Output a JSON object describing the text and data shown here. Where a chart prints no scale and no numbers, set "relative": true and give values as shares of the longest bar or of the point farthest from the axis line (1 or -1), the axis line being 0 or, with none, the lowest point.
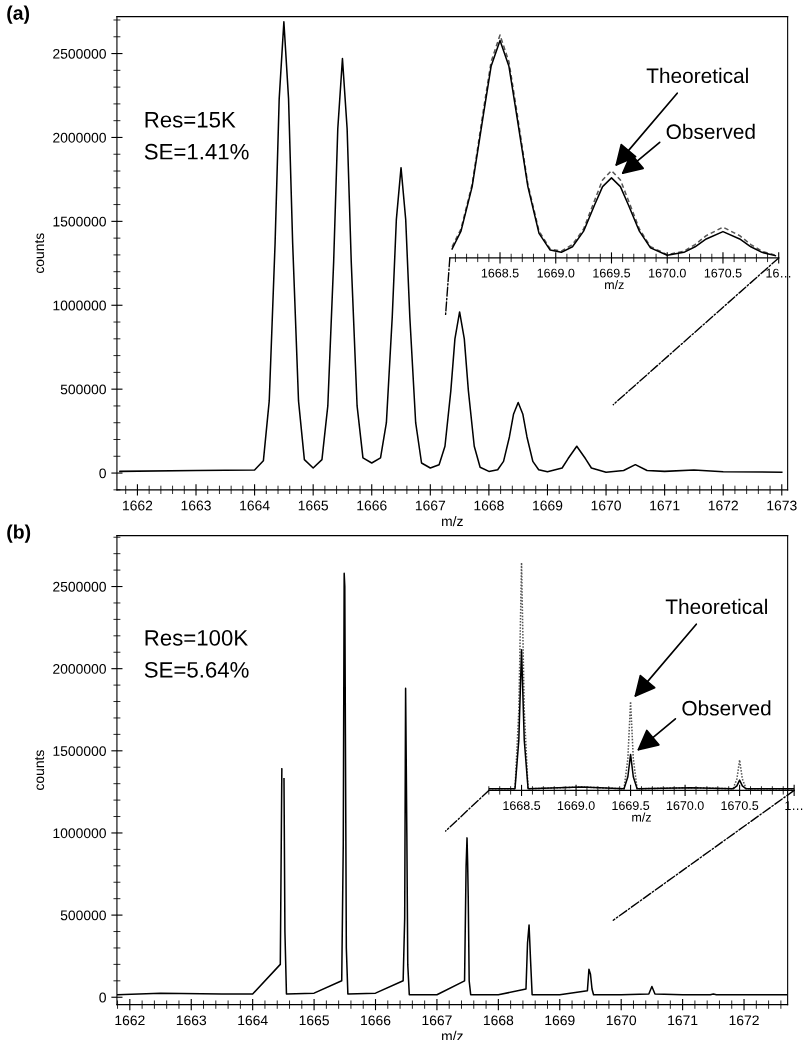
{
  "chart_data": [
    {
      "type": "line",
      "title": "(a)",
      "xlabel": "m/z",
      "ylabel": "counts",
      "annotations": [
        "Res=15K\nSE=1.41%"
      ],
      "xlim": [
        1661.65,
        1673.1
      ],
      "ylim": [
        -100000,
        2720000
      ],
      "xticks": [
        1662,
        1663,
        1664,
        1665,
        1666,
        1667,
        1668,
        1669,
        1670,
        1671,
        1672,
        1673
      ],
      "yticks": [
        0,
        500000,
        1000000,
        1500000,
        2000000,
        2500000
      ],
      "series": [
        {
          "color": "#000000",
          "line_style": "solid",
          "x": [
            1661.7,
            1663.0,
            1664.0,
            1664.15,
            1664.25,
            1664.35,
            1664.42,
            1664.5,
            1664.58,
            1664.65,
            1664.75,
            1664.85,
            1665.0,
            1665.15,
            1665.25,
            1665.35,
            1665.42,
            1665.5,
            1665.58,
            1665.65,
            1665.75,
            1665.85,
            1666.0,
            1666.15,
            1666.25,
            1666.35,
            1666.42,
            1666.5,
            1666.58,
            1666.65,
            1666.75,
            1666.85,
            1667.0,
            1667.15,
            1667.25,
            1667.35,
            1667.42,
            1667.5,
            1667.58,
            1667.65,
            1667.75,
            1667.85,
            1668.0,
            1668.15,
            1668.25,
            1668.35,
            1668.42,
            1668.5,
            1668.58,
            1668.65,
            1668.75,
            1668.85,
            1669.0,
            1669.25,
            1669.35,
            1669.5,
            1669.65,
            1669.75,
            1670.0,
            1670.3,
            1670.5,
            1670.7,
            1671.0,
            1671.5,
            1672.0,
            1673.0
          ],
          "values": [
            10000,
            15000,
            18000,
            73000,
            430000,
            1370000,
            2230000,
            2690000,
            2230000,
            1370000,
            430000,
            80000,
            30000,
            80000,
            400000,
            1260000,
            2050000,
            2470000,
            2050000,
            1260000,
            400000,
            90000,
            60000,
            90000,
            300000,
            930000,
            1510000,
            1820000,
            1510000,
            930000,
            300000,
            60000,
            30000,
            50000,
            160000,
            490000,
            800000,
            960000,
            800000,
            490000,
            160000,
            35000,
            10000,
            20000,
            70000,
            215000,
            350000,
            420000,
            350000,
            215000,
            70000,
            20000,
            8000,
            30000,
            85000,
            160000,
            85000,
            30000,
            5000,
            15000,
            50000,
            15000,
            10000,
            18000,
            8000,
            5000
          ]
        }
      ]
    },
    {
      "type": "line",
      "xlabel": "m/z",
      "relative": true,
      "tick_labels": "x",
      "xlim": [
        1668.05,
        1671.0
      ],
      "xticks": [
        1668.5,
        {
          "value": 1669.0,
          "label": "1669.0"
        },
        1669.5,
        {
          "value": 1670.0,
          "label": "1670.0"
        },
        1670.5,
        {
          "value": 1671.0,
          "label": "16…"
        }
      ],
      "annotations": [
        {
          "text": "Theoretical",
          "x": 1669.5,
          "y": 0.392
        },
        {
          "text": "Observed",
          "x": 1669.55,
          "y": 0.359
        }
      ],
      "series": [
        {
          "color": "#555555",
          "line_style": "dashed",
          "x": [
            1668.07,
            1668.15,
            1668.25,
            1668.35,
            1668.42,
            1668.5,
            1668.58,
            1668.65,
            1668.75,
            1668.85,
            1668.95,
            1669.05,
            1669.15,
            1669.25,
            1669.35,
            1669.42,
            1669.5,
            1669.58,
            1669.65,
            1669.75,
            1669.85,
            1670.0,
            1670.15,
            1670.25,
            1670.35,
            1670.5,
            1670.65,
            1670.75,
            1670.85,
            1670.97
          ],
          "values": [
            0.05,
            0.13,
            0.33,
            0.66,
            0.88,
            1.0,
            0.88,
            0.66,
            0.33,
            0.12,
            0.04,
            0.03,
            0.06,
            0.13,
            0.26,
            0.35,
            0.392,
            0.35,
            0.26,
            0.13,
            0.05,
            0.015,
            0.03,
            0.06,
            0.1,
            0.138,
            0.1,
            0.06,
            0.03,
            0.012
          ]
        },
        {
          "color": "#000000",
          "line_style": "solid",
          "x": [
            1668.07,
            1668.15,
            1668.25,
            1668.35,
            1668.42,
            1668.5,
            1668.58,
            1668.65,
            1668.75,
            1668.85,
            1668.95,
            1669.05,
            1669.15,
            1669.25,
            1669.35,
            1669.42,
            1669.5,
            1669.58,
            1669.65,
            1669.75,
            1669.85,
            1670.0,
            1670.15,
            1670.25,
            1670.35,
            1670.5,
            1670.65,
            1670.75,
            1670.85,
            1670.97
          ],
          "values": [
            0.04,
            0.12,
            0.32,
            0.64,
            0.86,
            0.976,
            0.86,
            0.64,
            0.32,
            0.11,
            0.035,
            0.025,
            0.05,
            0.12,
            0.24,
            0.32,
            0.359,
            0.32,
            0.24,
            0.12,
            0.045,
            0.012,
            0.025,
            0.05,
            0.085,
            0.118,
            0.085,
            0.05,
            0.025,
            0.01
          ]
        }
      ]
    },
    {
      "type": "line",
      "title": "(b)",
      "xlabel": "m/z",
      "ylabel": "counts",
      "annotations": [
        "Res=100K\nSE=5.64%"
      ],
      "xlim": [
        1661.79,
        1672.71
      ],
      "ylim": [
        -45000,
        2810000
      ],
      "xticks": [
        1662,
        1663,
        1664,
        1665,
        1666,
        1667,
        1668,
        1669,
        1670,
        1671,
        1672
      ],
      "yticks": [
        0,
        500000,
        1000000,
        1500000,
        2000000,
        2500000
      ],
      "series": [
        {
          "color": "#000000",
          "line_style": "solid",
          "x": [
            1661.8,
            1662.5,
            1663.5,
            1664.0,
            1664.45,
            1664.475,
            1664.49,
            1664.5,
            1664.51,
            1664.525,
            1664.55,
            1665.0,
            1665.45,
            1665.475,
            1665.49,
            1665.5,
            1665.51,
            1665.525,
            1665.55,
            1666.0,
            1666.45,
            1666.475,
            1666.49,
            1666.5,
            1666.51,
            1666.525,
            1666.55,
            1667.0,
            1667.45,
            1667.475,
            1667.49,
            1667.5,
            1667.51,
            1667.525,
            1667.55,
            1668.0,
            1668.45,
            1668.475,
            1668.5,
            1668.525,
            1668.55,
            1669.0,
            1669.45,
            1669.475,
            1669.5,
            1669.525,
            1669.55,
            1670.0,
            1670.45,
            1670.5,
            1670.55,
            1671.0,
            1671.45,
            1671.5,
            1671.55,
            1672.0,
            1672.7
          ],
          "values": [
            15000,
            25000,
            20000,
            20000,
            200000,
            1390000,
            null,
            null,
            1330000,
            400000,
            20000,
            25000,
            100000,
            930000,
            2580000,
            2500000,
            1600000,
            300000,
            20000,
            25000,
            100000,
            480000,
            1880000,
            1450000,
            1000000,
            200000,
            15000,
            15000,
            100000,
            800000,
            970000,
            820000,
            600000,
            100000,
            15000,
            15000,
            50000,
            330000,
            440000,
            220000,
            15000,
            15000,
            40000,
            170000,
            140000,
            50000,
            15000,
            15000,
            20000,
            65000,
            20000,
            15000,
            15000,
            20000,
            15000,
            15000,
            15000
          ]
        }
      ]
    },
    {
      "type": "line",
      "xlabel": "m/z",
      "relative": true,
      "tick_labels": "x",
      "xlim": [
        1668.2,
        1671.0
      ],
      "xticks": [
        1668.5,
        {
          "value": 1669.0,
          "label": "1669.0"
        },
        1669.5,
        {
          "value": 1670.0,
          "label": "1670.0"
        },
        1670.5,
        {
          "value": 1671.0,
          "label": "1…"
        }
      ],
      "annotations": [
        {
          "text": "Theoretical",
          "x": 1669.5,
          "y": 0.39
        },
        {
          "text": "Observed",
          "x": 1669.52,
          "y": 0.158
        }
      ],
      "series": [
        {
          "color": "#555555",
          "line_style": "dotted",
          "x": [
            1668.2,
            1668.44,
            1668.475,
            1668.5,
            1668.525,
            1668.56,
            1669.05,
            1669.44,
            1669.475,
            1669.5,
            1669.525,
            1669.56,
            1670.05,
            1670.44,
            1670.475,
            1670.5,
            1670.525,
            1670.56,
            1671.0
          ],
          "values": [
            0.007,
            0.007,
            0.35,
            1.0,
            0.35,
            0.007,
            0.015,
            0.007,
            0.14,
            0.39,
            0.14,
            0.007,
            0.012,
            0.007,
            0.05,
            0.134,
            0.05,
            0.007,
            0.007
          ]
        },
        {
          "color": "#000000",
          "line_style": "solid",
          "x": [
            1668.2,
            1668.44,
            1668.475,
            1668.5,
            1668.525,
            1668.56,
            1669.05,
            1669.44,
            1669.475,
            1669.5,
            1669.525,
            1669.56,
            1670.05,
            1670.44,
            1670.475,
            1670.5,
            1670.525,
            1670.56,
            1671.0
          ],
          "values": [
            0.007,
            0.007,
            0.22,
            0.617,
            0.22,
            0.007,
            0.015,
            0.007,
            0.06,
            0.158,
            0.06,
            0.007,
            0.012,
            0.007,
            0.02,
            0.045,
            0.02,
            0.007,
            0.007
          ]
        }
      ]
    }
  ]
}
